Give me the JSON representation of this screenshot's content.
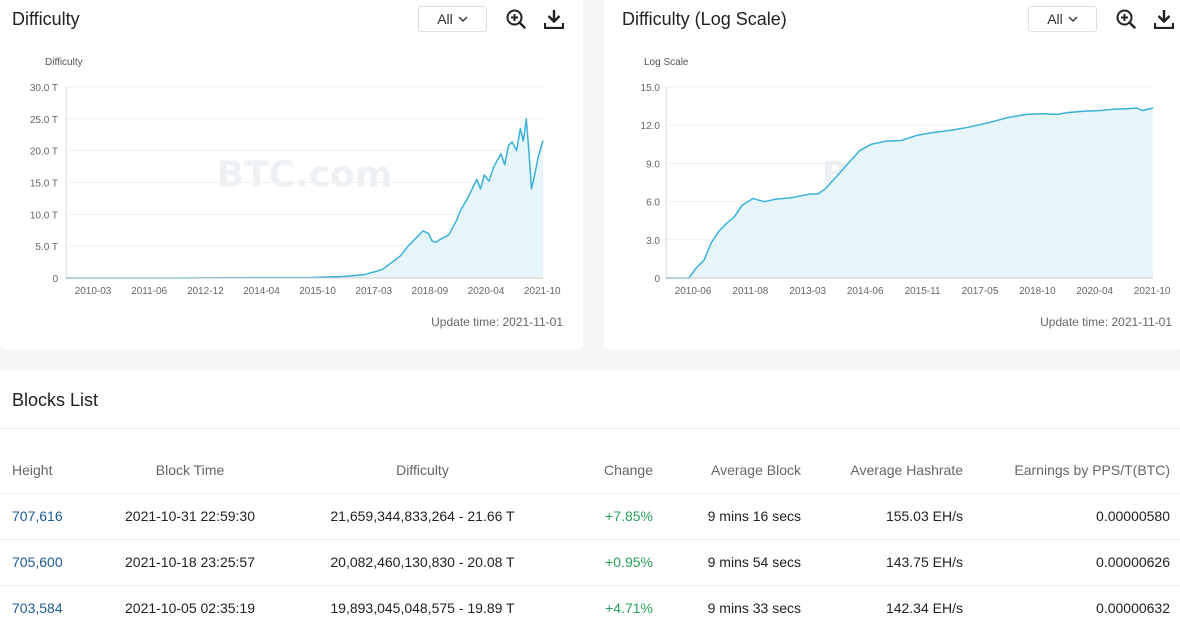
{
  "colors": {
    "line": "#3cb1d8",
    "area": "#e6f6fb",
    "positive": "#2aa05a",
    "link": "#1f5a92"
  },
  "difficulty_panel": {
    "title": "Difficulty",
    "range_value": "All",
    "update_time": "Update time: 2021-11-01"
  },
  "log_panel": {
    "title": "Difficulty (Log Scale)",
    "range_value": "All",
    "update_time": "Update time: 2021-11-01"
  },
  "icons": [
    "chevron-down-icon",
    "zoom-in-icon",
    "download-icon"
  ],
  "chart_data": [
    {
      "type": "area",
      "ylabel": "Difficulty",
      "watermark": "BTC.com",
      "y_ticks": [
        "0",
        "5.0 T",
        "10.0 T",
        "15.0 T",
        "20.0 T",
        "25.0 T",
        "30.0 T"
      ],
      "y_tick_values": [
        0,
        5,
        10,
        15,
        20,
        25,
        30
      ],
      "x_ticks": [
        "2010-03",
        "2011-06",
        "2012-12",
        "2014-04",
        "2015-10",
        "2017-03",
        "2018-09",
        "2020-04",
        "2021-10"
      ],
      "ylim": [
        0,
        30
      ],
      "xlim": [
        2009.0,
        2021.83
      ],
      "grid": true,
      "x": [
        2009.0,
        2012.0,
        2014.0,
        2015.5,
        2016.5,
        2017.0,
        2017.5,
        2017.8,
        2018.0,
        2018.2,
        2018.45,
        2018.6,
        2018.75,
        2018.85,
        2018.95,
        2019.05,
        2019.3,
        2019.5,
        2019.6,
        2019.8,
        2019.9,
        2020.05,
        2020.15,
        2020.25,
        2020.38,
        2020.5,
        2020.6,
        2020.7,
        2020.8,
        2020.9,
        2021.0,
        2021.12,
        2021.22,
        2021.3,
        2021.38,
        2021.45,
        2021.52,
        2021.6,
        2021.7,
        2021.83
      ],
      "values": [
        0,
        0.003,
        0.06,
        0.07,
        0.25,
        0.5,
        1.3,
        2.6,
        3.5,
        5.0,
        6.5,
        7.4,
        7.0,
        5.8,
        5.6,
        6.0,
        6.8,
        9.0,
        10.5,
        12.5,
        13.7,
        15.5,
        14.0,
        16.2,
        15.2,
        17.4,
        18.5,
        19.5,
        17.8,
        20.8,
        21.4,
        20.0,
        23.5,
        21.5,
        25.0,
        19.9,
        14.0,
        16.0,
        19.0,
        21.6
      ]
    },
    {
      "type": "area",
      "ylabel": "Log Scale",
      "watermark": "BTC.com",
      "y_ticks": [
        "0",
        "3.0",
        "6.0",
        "9.0",
        "12.0",
        "15.0"
      ],
      "y_tick_values": [
        0,
        3,
        6,
        9,
        12,
        15
      ],
      "x_ticks": [
        "2010-06",
        "2011-08",
        "2013-03",
        "2014-06",
        "2015-11",
        "2017-05",
        "2018-10",
        "2020-04",
        "2021-10"
      ],
      "ylim": [
        0,
        15
      ],
      "xlim": [
        2009.0,
        2021.83
      ],
      "grid": true,
      "x": [
        2009.0,
        2009.6,
        2009.8,
        2010.0,
        2010.2,
        2010.4,
        2010.6,
        2010.8,
        2011.0,
        2011.3,
        2011.45,
        2011.6,
        2011.9,
        2012.3,
        2012.8,
        2013.0,
        2013.2,
        2013.5,
        2013.8,
        2014.1,
        2014.4,
        2014.8,
        2015.2,
        2015.6,
        2016.0,
        2016.5,
        2016.9,
        2017.5,
        2018.0,
        2018.5,
        2018.9,
        2019.3,
        2019.6,
        2020.0,
        2020.4,
        2020.8,
        2021.2,
        2021.4,
        2021.55,
        2021.83
      ],
      "values": [
        0,
        0,
        0.8,
        1.4,
        2.8,
        3.7,
        4.3,
        4.8,
        5.7,
        6.25,
        6.1,
        6.0,
        6.2,
        6.3,
        6.6,
        6.6,
        7.0,
        8.0,
        9.0,
        10.0,
        10.5,
        10.75,
        10.8,
        11.2,
        11.4,
        11.6,
        11.8,
        12.2,
        12.6,
        12.85,
        12.9,
        12.85,
        13.0,
        13.1,
        13.15,
        13.25,
        13.3,
        13.35,
        13.15,
        13.35
      ]
    }
  ],
  "blocks": {
    "title": "Blocks List",
    "columns": [
      "Height",
      "Block Time",
      "Difficulty",
      "Change",
      "Average Block",
      "Average Hashrate",
      "Earnings by PPS/T(BTC)"
    ],
    "rows": [
      [
        "707,616",
        "2021-10-31 22:59:30",
        "21,659,344,833,264 - 21.66 T",
        "+7.85%",
        "9 mins 16 secs",
        "155.03 EH/s",
        "0.00000580"
      ],
      [
        "705,600",
        "2021-10-18 23:25:57",
        "20,082,460,130,830 - 20.08 T",
        "+0.95%",
        "9 mins 54 secs",
        "143.75 EH/s",
        "0.00000626"
      ],
      [
        "703,584",
        "2021-10-05 02:35:19",
        "19,893,045,048,575 - 19.89 T",
        "+4.71%",
        "9 mins 33 secs",
        "142.34 EH/s",
        "0.00000632"
      ]
    ]
  }
}
